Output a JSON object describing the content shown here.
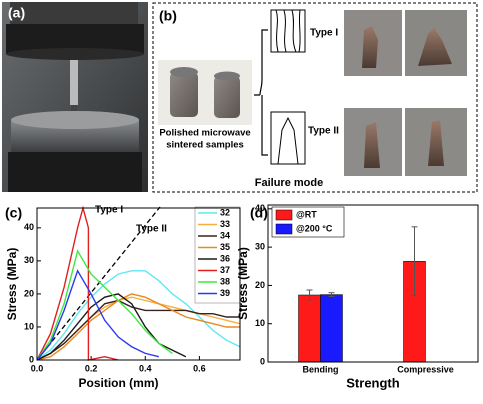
{
  "panel_labels": [
    "(a)",
    "(b)",
    "(c)",
    "(d)"
  ],
  "panel_b": {
    "sample_label": [
      "Polished microwave",
      "sintered samples"
    ],
    "type_1": "Type I",
    "type_2": "Type II",
    "failure_mode": "Failure mode"
  },
  "chart_data": [
    {
      "type": "line",
      "x_label": "Position (mm)",
      "y_label": "Stress (MPa)",
      "annotations": [
        "Type I",
        "Type II"
      ],
      "xlim": [
        0,
        0.75
      ],
      "ylim": [
        0,
        46
      ],
      "xticks": [
        {
          "value": 0,
          "label": "0.0"
        },
        0.2,
        0.4,
        0.6
      ],
      "yticks": [
        0,
        10,
        20,
        30,
        40
      ],
      "series": [
        {
          "name": "32",
          "color": "#5ee8f2",
          "x": [
            0,
            0.05,
            0.1,
            0.15,
            0.2,
            0.25,
            0.3,
            0.35,
            0.4,
            0.45,
            0.5,
            0.55,
            0.6,
            0.65,
            0.7,
            0.75
          ],
          "values": [
            0,
            3,
            8,
            14,
            19,
            23,
            26,
            27,
            27,
            24,
            20,
            17,
            13,
            9,
            6,
            4
          ]
        },
        {
          "name": "33",
          "color": "#f5b040",
          "x": [
            0,
            0.05,
            0.1,
            0.15,
            0.2,
            0.25,
            0.3,
            0.35,
            0.4,
            0.45,
            0.5,
            0.55,
            0.6,
            0.65,
            0.7,
            0.75
          ],
          "values": [
            0,
            2,
            5,
            9,
            13,
            16,
            18,
            19,
            18,
            17,
            16,
            15,
            14,
            13,
            12,
            11
          ]
        },
        {
          "name": "34",
          "color": "#3a2020",
          "x": [
            0,
            0.05,
            0.1,
            0.15,
            0.2,
            0.25,
            0.3,
            0.35,
            0.4,
            0.45,
            0.5,
            0.55,
            0.6,
            0.65,
            0.7,
            0.75
          ],
          "values": [
            0,
            2,
            5,
            9,
            13,
            17,
            18,
            16,
            15,
            15,
            15,
            15,
            14,
            14,
            13,
            13
          ]
        },
        {
          "name": "35",
          "color": "#e88a20",
          "x": [
            0,
            0.05,
            0.1,
            0.15,
            0.2,
            0.25,
            0.3,
            0.35,
            0.4,
            0.45,
            0.5,
            0.55,
            0.6,
            0.65,
            0.7,
            0.75
          ],
          "values": [
            0,
            1,
            4,
            8,
            12,
            15,
            18,
            20,
            19,
            17,
            15,
            13,
            12,
            11,
            10,
            10
          ]
        },
        {
          "name": "36",
          "color": "#1a1a1a",
          "x": [
            0,
            0.05,
            0.1,
            0.15,
            0.2,
            0.25,
            0.3,
            0.35,
            0.4,
            0.45,
            0.5,
            0.55
          ],
          "values": [
            0,
            2,
            6,
            11,
            16,
            19,
            20,
            17,
            10,
            5,
            3,
            1
          ]
        },
        {
          "name": "37",
          "color": "#e02020",
          "x": [
            0,
            0.05,
            0.1,
            0.15,
            0.17,
            0.19,
            0.19,
            0.25,
            0.3
          ],
          "values": [
            0,
            8,
            22,
            40,
            46,
            40,
            0,
            1,
            0
          ]
        },
        {
          "name": "38",
          "color": "#3ee83e",
          "x": [
            0,
            0.05,
            0.1,
            0.15,
            0.2,
            0.25,
            0.3,
            0.35,
            0.4,
            0.45,
            0.5
          ],
          "values": [
            0,
            6,
            17,
            33,
            26,
            22,
            18,
            14,
            9,
            5,
            2
          ]
        },
        {
          "name": "39",
          "color": "#2a3af0",
          "x": [
            0,
            0.05,
            0.1,
            0.15,
            0.2,
            0.25,
            0.3,
            0.35,
            0.4,
            0.45
          ],
          "values": [
            0,
            5,
            15,
            27,
            20,
            12,
            7,
            4,
            2,
            1
          ]
        }
      ]
    },
    {
      "type": "bar",
      "x_label": "Strength",
      "y_label": "Stress (MPa)",
      "categories": [
        "Bending",
        "Compressive"
      ],
      "ylim": [
        0,
        41
      ],
      "yticks": [
        0,
        10,
        20,
        30,
        40
      ],
      "series": [
        {
          "name": "@RT",
          "color": "#ff1a1a",
          "values": [
            17.5,
            26.3
          ],
          "errors": [
            1.3,
            9
          ]
        },
        {
          "name": "@200 °C",
          "color": "#1a1aff",
          "values": [
            17.6,
            null
          ],
          "errors": [
            0.5,
            null
          ]
        }
      ]
    }
  ]
}
